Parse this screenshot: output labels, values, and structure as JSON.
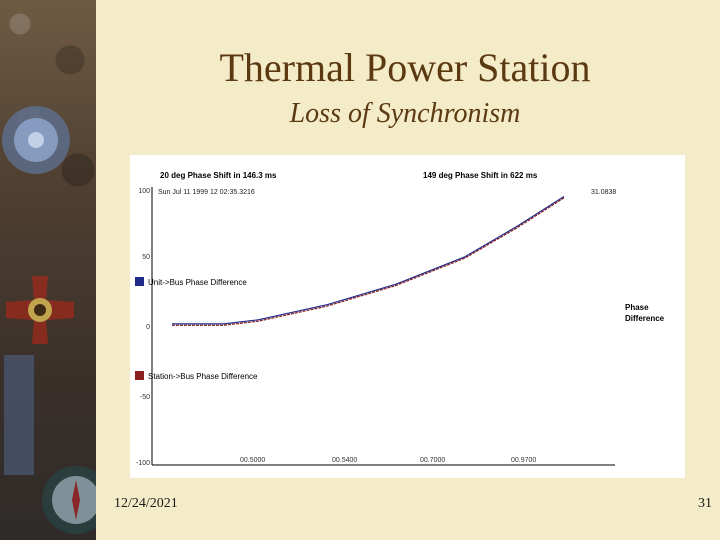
{
  "slide": {
    "title": "Thermal Power Station",
    "subtitle": "Loss of Synchronism",
    "date": "12/24/2021",
    "page_number": "31"
  },
  "decoration": {
    "image": "medal-with-ribbon-and-compass"
  },
  "chart_data": {
    "type": "line",
    "annotations": {
      "left": "20 deg Phase Shift in 146.3 ms",
      "right": "149 deg Phase Shift in 622 ms",
      "timestamp": "Sun Jul 11 1999 12 02:35.3216",
      "end_value": "31.0838"
    },
    "x_tick_labels": [
      "00.5000",
      "00.5400",
      "00.7000",
      "00.9700"
    ],
    "y_tick_labels": [
      "100",
      "50",
      "0",
      "-50",
      "-100"
    ],
    "ylim": [
      -100,
      100
    ],
    "series": [
      {
        "name": "Unit->Bus Phase Difference",
        "color": "#1f2a8a",
        "points": [
          [
            0.5,
            3
          ],
          [
            0.51,
            3
          ],
          [
            0.53,
            3
          ],
          [
            0.56,
            3
          ],
          [
            0.6,
            6
          ],
          [
            0.68,
            17
          ],
          [
            0.76,
            32
          ],
          [
            0.84,
            52
          ],
          [
            0.9,
            74
          ],
          [
            0.955,
            96
          ]
        ]
      },
      {
        "name": "Station->Bus Phase Difference",
        "color": "#8a1f1f",
        "points": [
          [
            0.5,
            2
          ],
          [
            0.51,
            2
          ],
          [
            0.53,
            2
          ],
          [
            0.56,
            2
          ],
          [
            0.6,
            5
          ],
          [
            0.68,
            16
          ],
          [
            0.76,
            31
          ],
          [
            0.84,
            51
          ],
          [
            0.9,
            73
          ],
          [
            0.955,
            95
          ]
        ]
      }
    ],
    "right_label": [
      "Phase",
      "Difference"
    ],
    "grid": false
  }
}
